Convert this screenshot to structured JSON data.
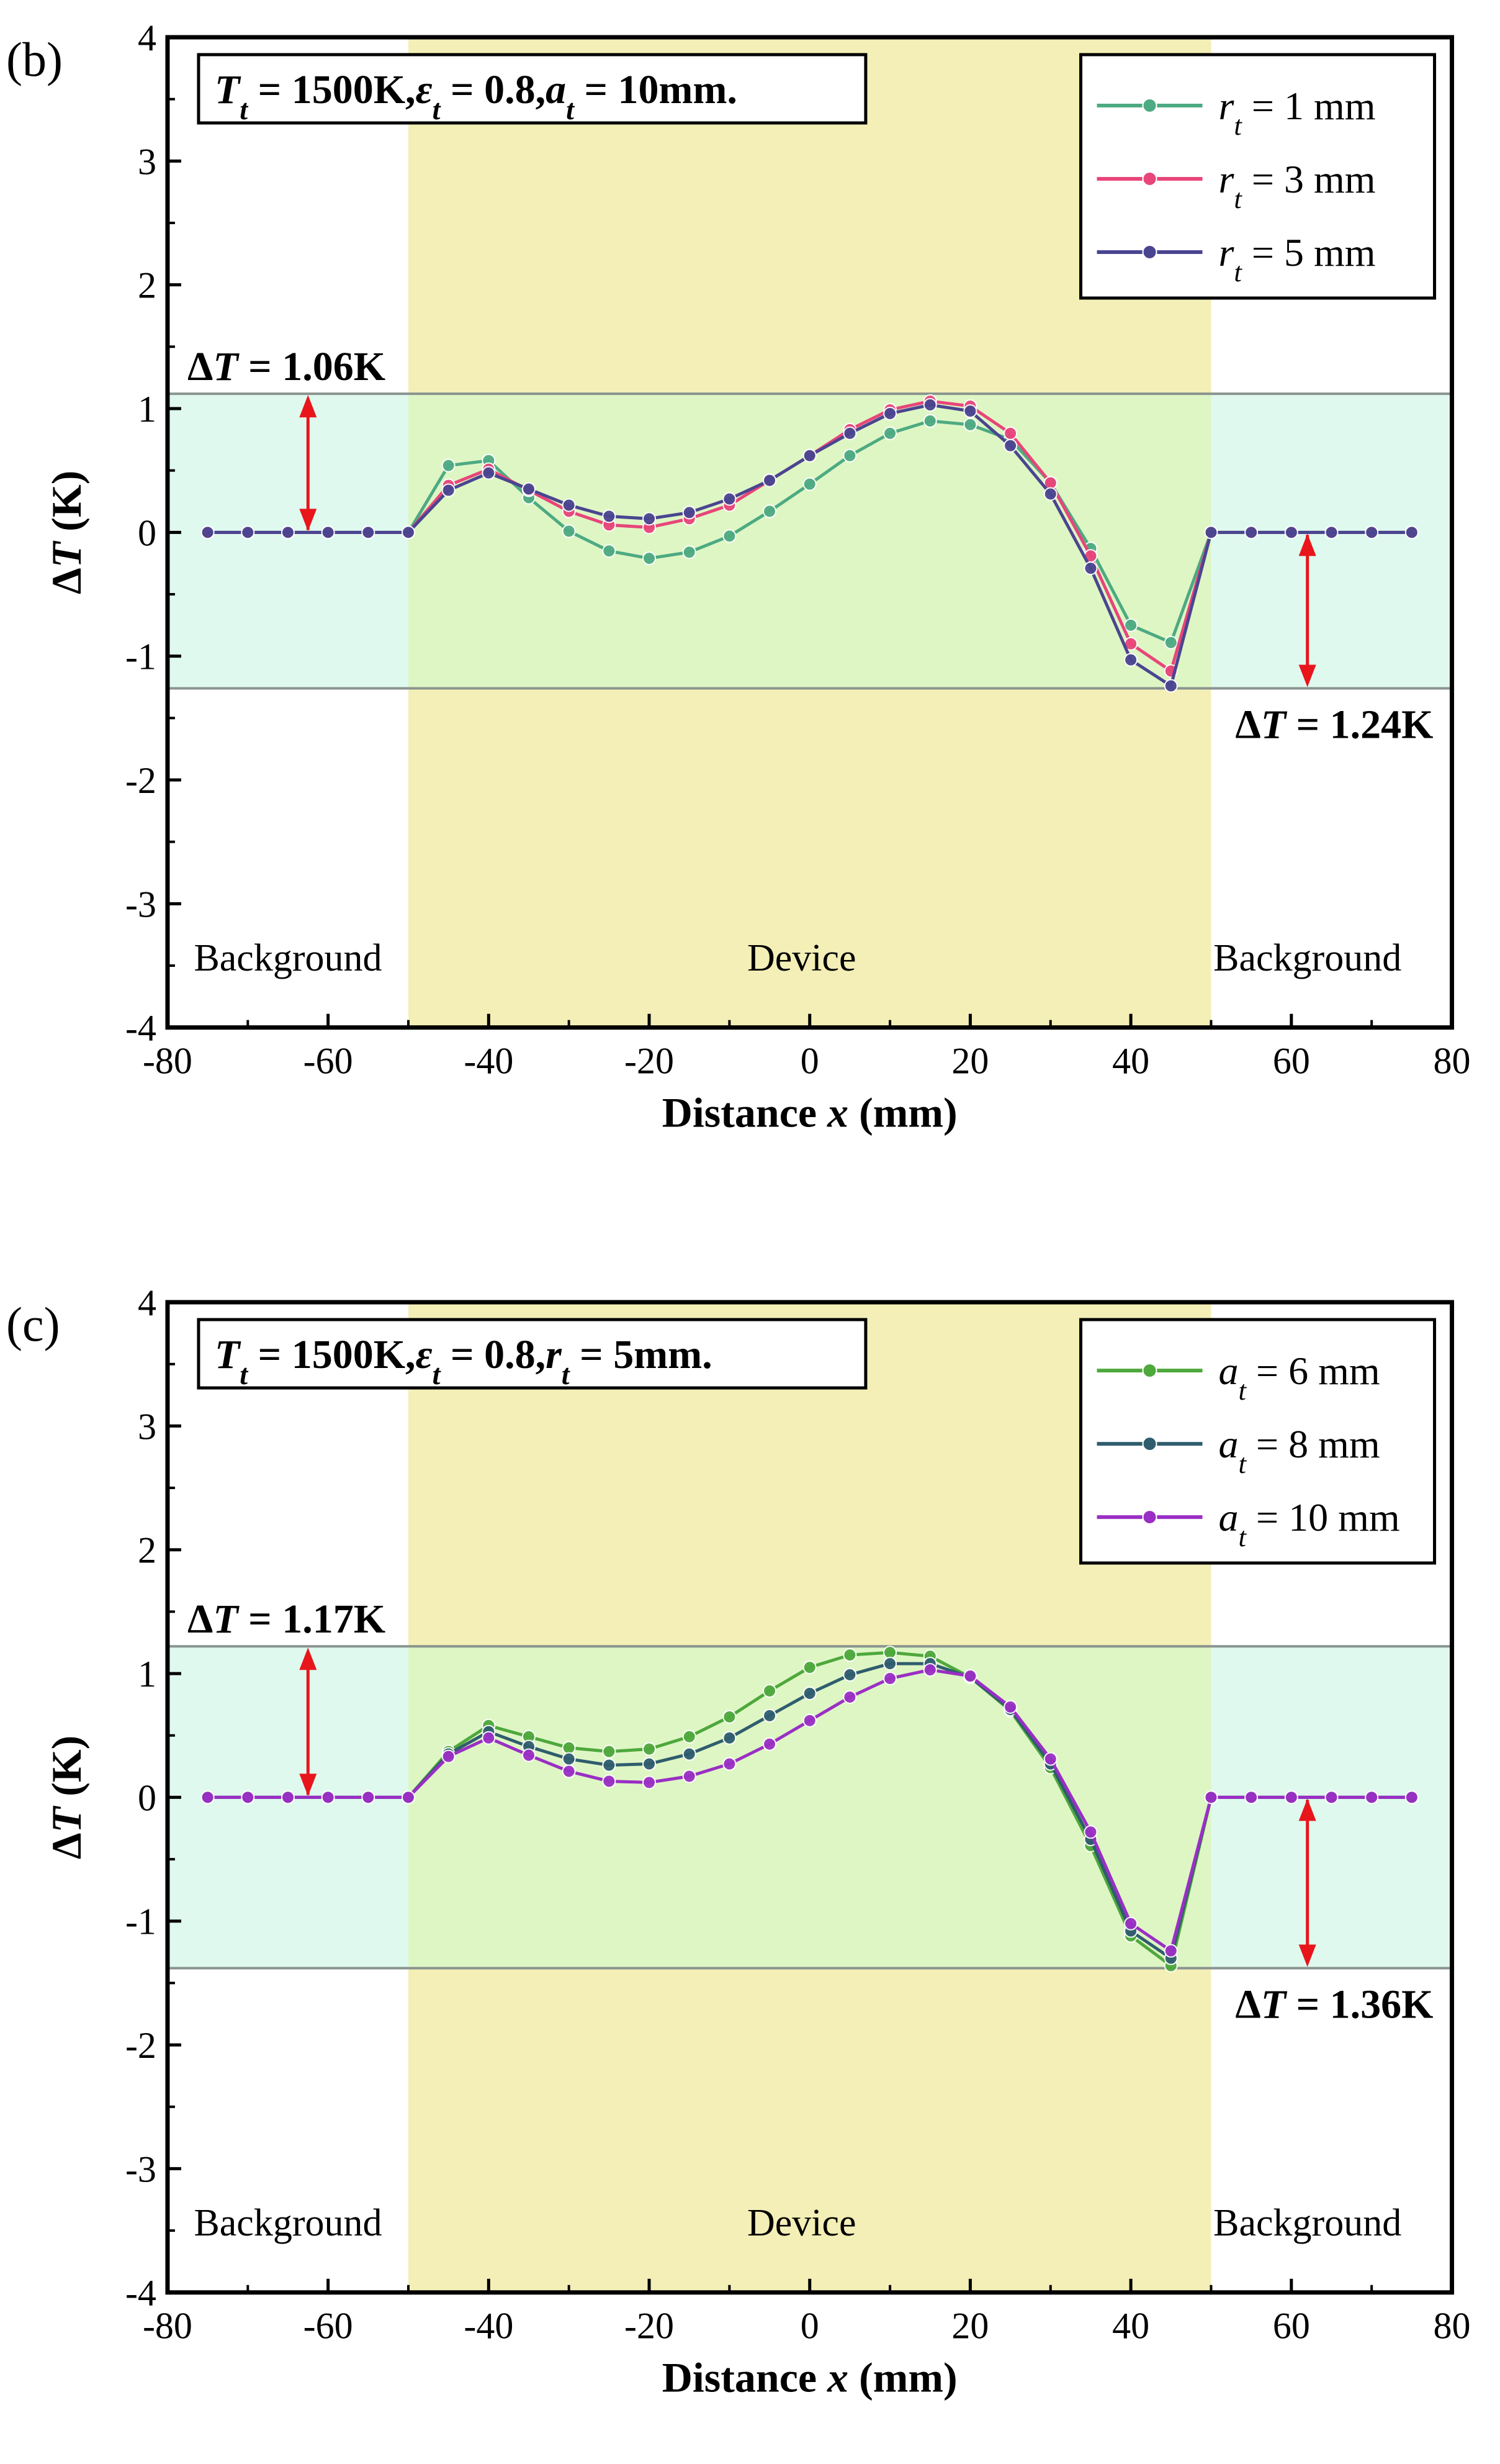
{
  "colors": {
    "device_band": "#f3efb6",
    "range_band": "#dff9ef",
    "range_line": "#8a948f",
    "arrow": "#e8161b"
  },
  "chart_data": [
    {
      "type": "line",
      "panel_label": "(b)",
      "params_text": "T_t = 1500K, ε_t = 0.8, a_t = 10mm.",
      "params": [
        {
          "sym": "T",
          "sub": "t",
          "val": "1500K,"
        },
        {
          "sym": "ε",
          "sub": "t",
          "val": "0.8,"
        },
        {
          "sym": "a",
          "sub": "t",
          "val": "10mm."
        }
      ],
      "xlabel": "Distance x (mm)",
      "ylabel": "ΔT (K)",
      "xlim": [
        -80,
        80
      ],
      "ylim": [
        -4,
        4
      ],
      "xticks": [
        "-80",
        "-60",
        "-40",
        "-20",
        "0",
        "20",
        "40",
        "60",
        "80"
      ],
      "yticks": [
        "-4",
        "-3",
        "-2",
        "-1",
        "0",
        "1",
        "2",
        "3",
        "4"
      ],
      "regions": [
        {
          "label": "Background",
          "x": -65
        },
        {
          "label": "Device",
          "x": -1
        },
        {
          "label": "Background",
          "x": 62
        }
      ],
      "device_range": [
        -50,
        50
      ],
      "range_band": [
        -1.26,
        1.12
      ],
      "annotations": {
        "upper": {
          "text": "ΔT = 1.06K",
          "value": "1.06K"
        },
        "lower": {
          "text": "ΔT = 1.24K",
          "value": "1.24K"
        }
      },
      "x": [
        -75,
        -70,
        -65,
        -60,
        -55,
        -50,
        -45,
        -40,
        -35,
        -30,
        -25,
        -20,
        -15,
        -10,
        -5,
        0,
        5,
        10,
        15,
        20,
        25,
        30,
        35,
        40,
        45,
        50,
        55,
        60,
        65,
        70,
        75
      ],
      "series": [
        {
          "sym": "r",
          "sub": "t",
          "val": "= 1 mm",
          "name": "r_t = 1 mm",
          "color": "#4daa82",
          "values": [
            0,
            0,
            0,
            0,
            0,
            0,
            0.54,
            0.58,
            0.28,
            0.01,
            -0.15,
            -0.21,
            -0.16,
            -0.03,
            0.17,
            0.39,
            0.62,
            0.8,
            0.9,
            0.87,
            0.75,
            0.4,
            -0.13,
            -0.75,
            -0.89,
            0,
            0,
            0,
            0,
            0,
            0
          ]
        },
        {
          "sym": "r",
          "sub": "t",
          "val": "= 3 mm",
          "name": "r_t = 3 mm",
          "color": "#e8457a",
          "values": [
            0,
            0,
            0,
            0,
            0,
            0,
            0.38,
            0.51,
            0.34,
            0.17,
            0.06,
            0.04,
            0.11,
            0.22,
            0.42,
            0.62,
            0.83,
            0.99,
            1.06,
            1.02,
            0.8,
            0.4,
            -0.19,
            -0.9,
            -1.12,
            0,
            0,
            0,
            0,
            0,
            0
          ]
        },
        {
          "sym": "r",
          "sub": "t",
          "val": "= 5 mm",
          "name": "r_t = 5 mm",
          "color": "#4a4590",
          "values": [
            0,
            0,
            0,
            0,
            0,
            0,
            0.34,
            0.48,
            0.35,
            0.22,
            0.13,
            0.11,
            0.16,
            0.27,
            0.42,
            0.62,
            0.8,
            0.96,
            1.03,
            0.98,
            0.7,
            0.31,
            -0.29,
            -1.03,
            -1.24,
            0,
            0,
            0,
            0,
            0,
            0
          ]
        }
      ]
    },
    {
      "type": "line",
      "panel_label": "(c)",
      "params_text": "T_t = 1500K, ε_t = 0.8, r_t = 5mm.",
      "params": [
        {
          "sym": "T",
          "sub": "t",
          "val": "1500K,"
        },
        {
          "sym": "ε",
          "sub": "t",
          "val": "0.8,"
        },
        {
          "sym": "r",
          "sub": "t",
          "val": "5mm."
        }
      ],
      "xlabel": "Distance x (mm)",
      "ylabel": "ΔT (K)",
      "xlim": [
        -80,
        80
      ],
      "ylim": [
        -4,
        4
      ],
      "xticks": [
        "-80",
        "-60",
        "-40",
        "-20",
        "0",
        "20",
        "40",
        "60",
        "80"
      ],
      "yticks": [
        "-4",
        "-3",
        "-2",
        "-1",
        "0",
        "1",
        "2",
        "3",
        "4"
      ],
      "regions": [
        {
          "label": "Background",
          "x": -65
        },
        {
          "label": "Device",
          "x": -1
        },
        {
          "label": "Background",
          "x": 62
        }
      ],
      "device_range": [
        -50,
        50
      ],
      "range_band": [
        -1.38,
        1.22
      ],
      "annotations": {
        "upper": {
          "text": "ΔT = 1.17K",
          "value": "1.17K"
        },
        "lower": {
          "text": "ΔT = 1.36K",
          "value": "1.36K"
        }
      },
      "x": [
        -75,
        -70,
        -65,
        -60,
        -55,
        -50,
        -45,
        -40,
        -35,
        -30,
        -25,
        -20,
        -15,
        -10,
        -5,
        0,
        5,
        10,
        15,
        20,
        25,
        30,
        35,
        40,
        45,
        50,
        55,
        60,
        65,
        70,
        75
      ],
      "series": [
        {
          "sym": "a",
          "sub": "t",
          "val": "= 6 mm",
          "name": "a_t = 6 mm",
          "color": "#4ea83c",
          "values": [
            0,
            0,
            0,
            0,
            0,
            0,
            0.37,
            0.58,
            0.49,
            0.4,
            0.37,
            0.39,
            0.49,
            0.65,
            0.86,
            1.05,
            1.15,
            1.17,
            1.14,
            0.97,
            0.7,
            0.24,
            -0.39,
            -1.12,
            -1.36,
            0,
            0,
            0,
            0,
            0,
            0
          ]
        },
        {
          "sym": "a",
          "sub": "t",
          "val": "= 8 mm",
          "name": "a_t = 8 mm",
          "color": "#2f5d6e",
          "values": [
            0,
            0,
            0,
            0,
            0,
            0,
            0.35,
            0.53,
            0.41,
            0.31,
            0.26,
            0.27,
            0.35,
            0.48,
            0.66,
            0.84,
            0.99,
            1.08,
            1.08,
            0.97,
            0.71,
            0.27,
            -0.34,
            -1.08,
            -1.3,
            0,
            0,
            0,
            0,
            0,
            0
          ]
        },
        {
          "sym": "a",
          "sub": "t",
          "val": "= 10 mm",
          "name": "a_t = 10 mm",
          "color": "#9a2fc4",
          "values": [
            0,
            0,
            0,
            0,
            0,
            0,
            0.33,
            0.48,
            0.34,
            0.21,
            0.13,
            0.12,
            0.17,
            0.27,
            0.43,
            0.62,
            0.81,
            0.96,
            1.03,
            0.98,
            0.73,
            0.31,
            -0.28,
            -1.02,
            -1.24,
            0,
            0,
            0,
            0,
            0,
            0
          ]
        }
      ]
    }
  ]
}
